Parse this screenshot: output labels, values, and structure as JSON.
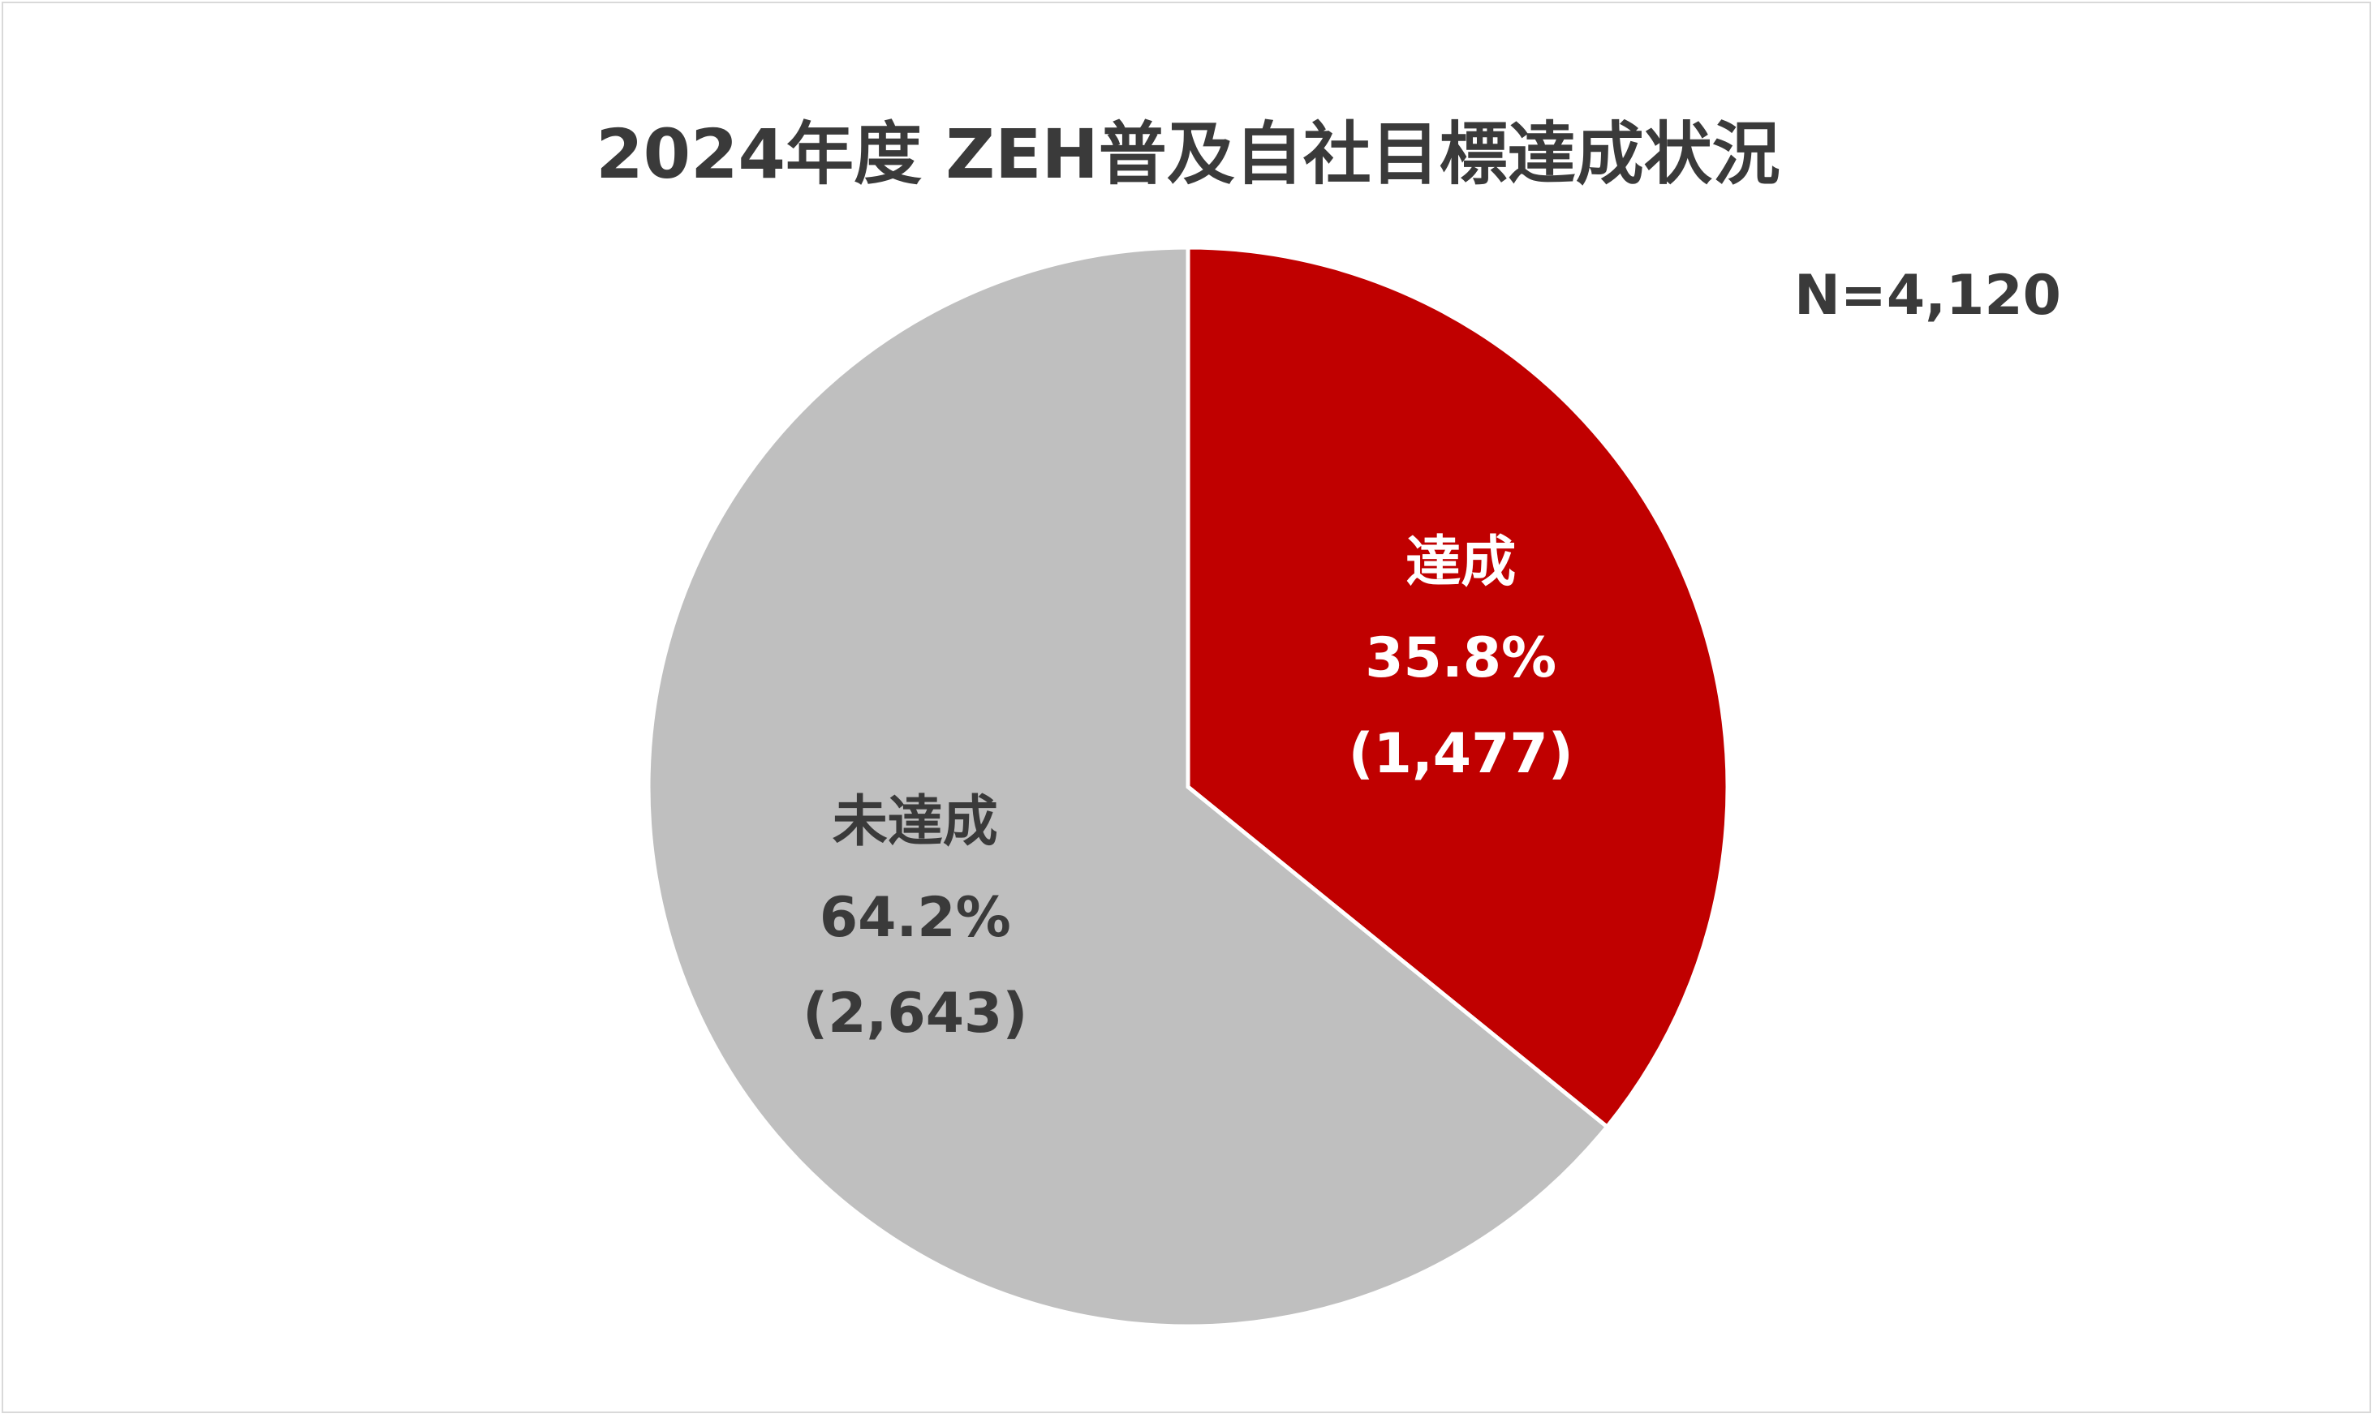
{
  "chart_data": {
    "type": "pie",
    "title": "2024年度 ZEH普及自社目標達成状況",
    "annotation": "N=4,120",
    "total": 4120,
    "slices": [
      {
        "name": "達成",
        "percent_label": "35.8%",
        "count_label": "(1,477)",
        "value": 1477,
        "percent": 35.8,
        "color": "#c00000",
        "label_color": "#ffffff"
      },
      {
        "name": "未達成",
        "percent_label": "64.2%",
        "count_label": "(2,643)",
        "value": 2643,
        "percent": 64.2,
        "color": "#bfbfbf",
        "label_color": "#3a3a3a"
      }
    ],
    "start_angle": "top (12 o'clock), clockwise",
    "legend": "none"
  }
}
